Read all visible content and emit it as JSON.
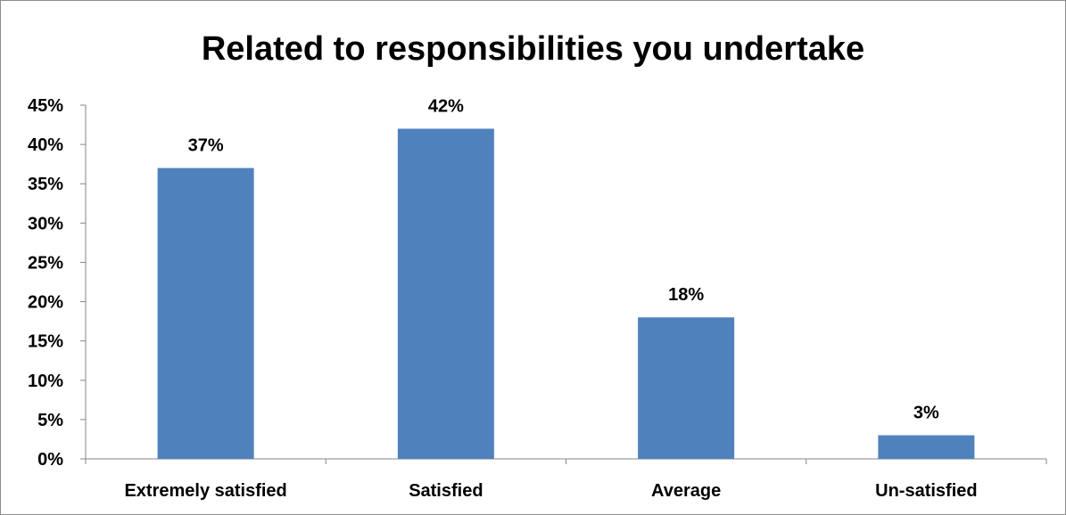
{
  "chart_data": {
    "type": "bar",
    "title": "Related to responsibilities you undertake",
    "xlabel": "",
    "ylabel": "",
    "categories": [
      "Extremely satisfied",
      "Satisfied",
      "Average",
      "Un-satisfied"
    ],
    "values": [
      37,
      42,
      18,
      3
    ],
    "value_labels": [
      "37%",
      "42%",
      "18%",
      "3%"
    ],
    "ylim": [
      0,
      45
    ],
    "yticks": [
      0,
      5,
      10,
      15,
      20,
      25,
      30,
      35,
      40,
      45
    ],
    "ytick_labels": [
      "0%",
      "5%",
      "10%",
      "15%",
      "20%",
      "25%",
      "30%",
      "35%",
      "40%",
      "45%"
    ],
    "grid": false,
    "legend": "none",
    "bar_color": "#4f81bd",
    "axis_color": "#868686"
  }
}
